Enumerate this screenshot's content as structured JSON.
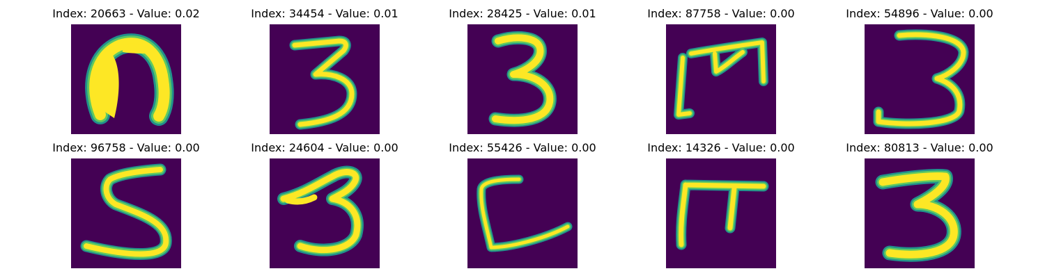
{
  "colors": {
    "background": "#440154",
    "stroke_edge": "#21918c",
    "stroke_mid": "#5ec962",
    "stroke_core": "#fde725"
  },
  "panels": [
    {
      "title": "Index: 20663 - Value: 0.02",
      "digit_icon": "arch-blob-glyph"
    },
    {
      "title": "Index: 34454 - Value: 0.01",
      "digit_icon": "digit-3-glyph"
    },
    {
      "title": "Index: 28425 - Value: 0.01",
      "digit_icon": "digit-3-glyph"
    },
    {
      "title": "Index: 87758 - Value: 0.00",
      "digit_icon": "m-shape-glyph"
    },
    {
      "title": "Index: 54896 - Value: 0.00",
      "digit_icon": "digit-3-glyph"
    },
    {
      "title": "Index: 96758 - Value: 0.00",
      "digit_icon": "digit-5-glyph"
    },
    {
      "title": "Index: 24604 - Value: 0.00",
      "digit_icon": "digit-3-glyph"
    },
    {
      "title": "Index: 55426 - Value: 0.00",
      "digit_icon": "l-shape-glyph"
    },
    {
      "title": "Index: 14326 - Value: 0.00",
      "digit_icon": "pi-shape-glyph"
    },
    {
      "title": "Index: 80813 - Value: 0.00",
      "digit_icon": "digit-3-glyph"
    }
  ]
}
